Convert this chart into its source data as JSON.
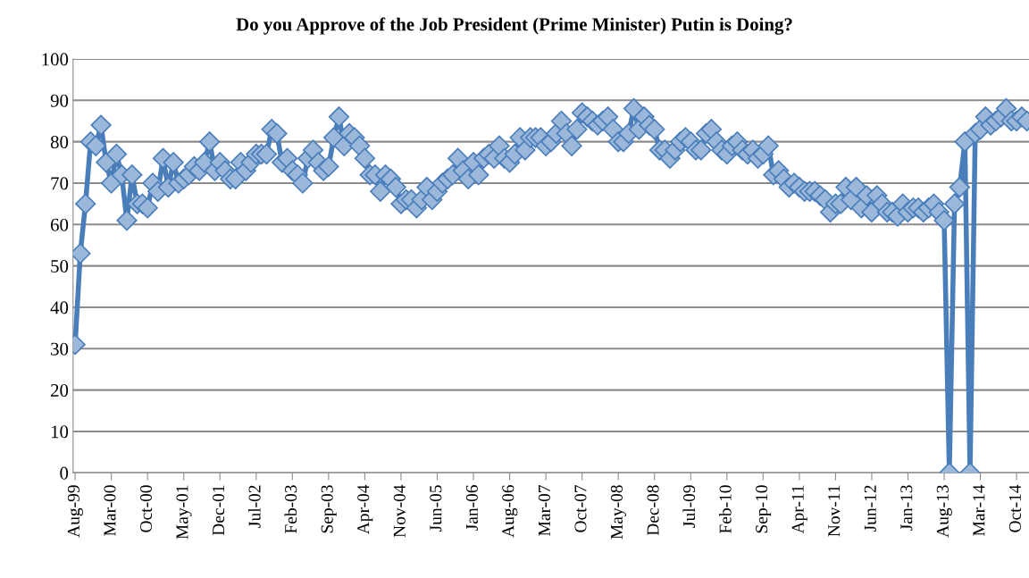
{
  "chart_data": {
    "type": "line",
    "title": "Do you Approve of the Job President (Prime Minister) Putin is Doing?",
    "categories": [
      "Aug-99",
      null,
      null,
      null,
      null,
      null,
      null,
      "Mar-00",
      null,
      null,
      null,
      null,
      null,
      null,
      "Oct-00",
      null,
      null,
      null,
      null,
      null,
      null,
      "May-01",
      null,
      null,
      null,
      null,
      null,
      null,
      "Dec-01",
      null,
      null,
      null,
      null,
      null,
      null,
      "Jul-02",
      null,
      null,
      null,
      null,
      null,
      null,
      "Feb-03",
      null,
      null,
      null,
      null,
      null,
      null,
      "Sep-03",
      null,
      null,
      null,
      null,
      null,
      null,
      "Apr-04",
      null,
      null,
      null,
      null,
      null,
      null,
      "Nov-04",
      null,
      null,
      null,
      null,
      null,
      null,
      "Jun-05",
      null,
      null,
      null,
      null,
      null,
      null,
      "Jan-06",
      null,
      null,
      null,
      null,
      null,
      null,
      "Aug-06",
      null,
      null,
      null,
      null,
      null,
      null,
      "Mar-07",
      null,
      null,
      null,
      null,
      null,
      null,
      "Oct-07",
      null,
      null,
      null,
      null,
      null,
      null,
      "May-08",
      null,
      null,
      null,
      null,
      null,
      null,
      "Dec-08",
      null,
      null,
      null,
      null,
      null,
      null,
      "Jul-09",
      null,
      null,
      null,
      null,
      null,
      null,
      "Feb-10",
      null,
      null,
      null,
      null,
      null,
      null,
      "Sep-10",
      null,
      null,
      null,
      null,
      null,
      null,
      "Apr-11",
      null,
      null,
      null,
      null,
      null,
      null,
      "Nov-11",
      null,
      null,
      null,
      null,
      null,
      null,
      "Jun-12",
      null,
      null,
      null,
      null,
      null,
      null,
      "Jan-13",
      null,
      null,
      null,
      null,
      null,
      null,
      "Aug-13",
      null,
      null,
      null,
      null,
      null,
      null,
      "Mar-14",
      null,
      null,
      null,
      null,
      null,
      null,
      "Oct-14",
      null,
      null
    ],
    "series": [
      {
        "color": "#4a7ebb",
        "values": [
          31,
          53,
          65,
          80,
          79,
          84,
          75,
          70,
          77,
          72,
          61,
          72,
          65,
          65,
          64,
          70,
          68,
          76,
          69,
          75,
          70,
          71,
          72,
          74,
          73,
          75,
          80,
          73,
          75,
          73,
          71,
          71,
          75,
          73,
          75,
          77,
          77,
          77,
          83,
          82,
          75,
          76,
          73,
          72,
          70,
          76,
          78,
          75,
          73,
          74,
          81,
          86,
          79,
          82,
          81,
          79,
          76,
          72,
          72,
          68,
          72,
          71,
          69,
          65,
          66,
          66,
          64,
          66,
          69,
          66,
          68,
          70,
          71,
          72,
          76,
          73,
          71,
          75,
          72,
          76,
          77,
          76,
          79,
          76,
          75,
          77,
          81,
          78,
          81,
          81,
          81,
          79,
          80,
          82,
          85,
          82,
          79,
          83,
          87,
          86,
          85,
          84,
          85,
          86,
          83,
          80,
          80,
          82,
          88,
          83,
          86,
          84,
          83,
          78,
          78,
          76,
          78,
          80,
          81,
          80,
          78,
          78,
          82,
          83,
          80,
          78,
          77,
          79,
          80,
          78,
          77,
          78,
          76,
          77,
          79,
          72,
          73,
          71,
          69,
          70,
          69,
          68,
          68,
          68,
          67,
          66,
          63,
          65,
          65,
          69,
          66,
          69,
          64,
          67,
          63,
          67,
          65,
          63,
          63,
          62,
          65,
          63,
          64,
          64,
          63,
          64,
          65,
          63,
          61,
          0,
          65,
          69,
          80,
          0,
          82,
          83,
          86,
          84,
          85,
          86,
          88,
          85,
          85,
          86,
          85
        ]
      }
    ],
    "ylim": [
      0,
      100
    ],
    "yticks": [
      0,
      10,
      20,
      30,
      40,
      50,
      60,
      70,
      80,
      90,
      100
    ],
    "grid": "y",
    "legend": false,
    "marker": "diamond",
    "line_style": "solid"
  }
}
